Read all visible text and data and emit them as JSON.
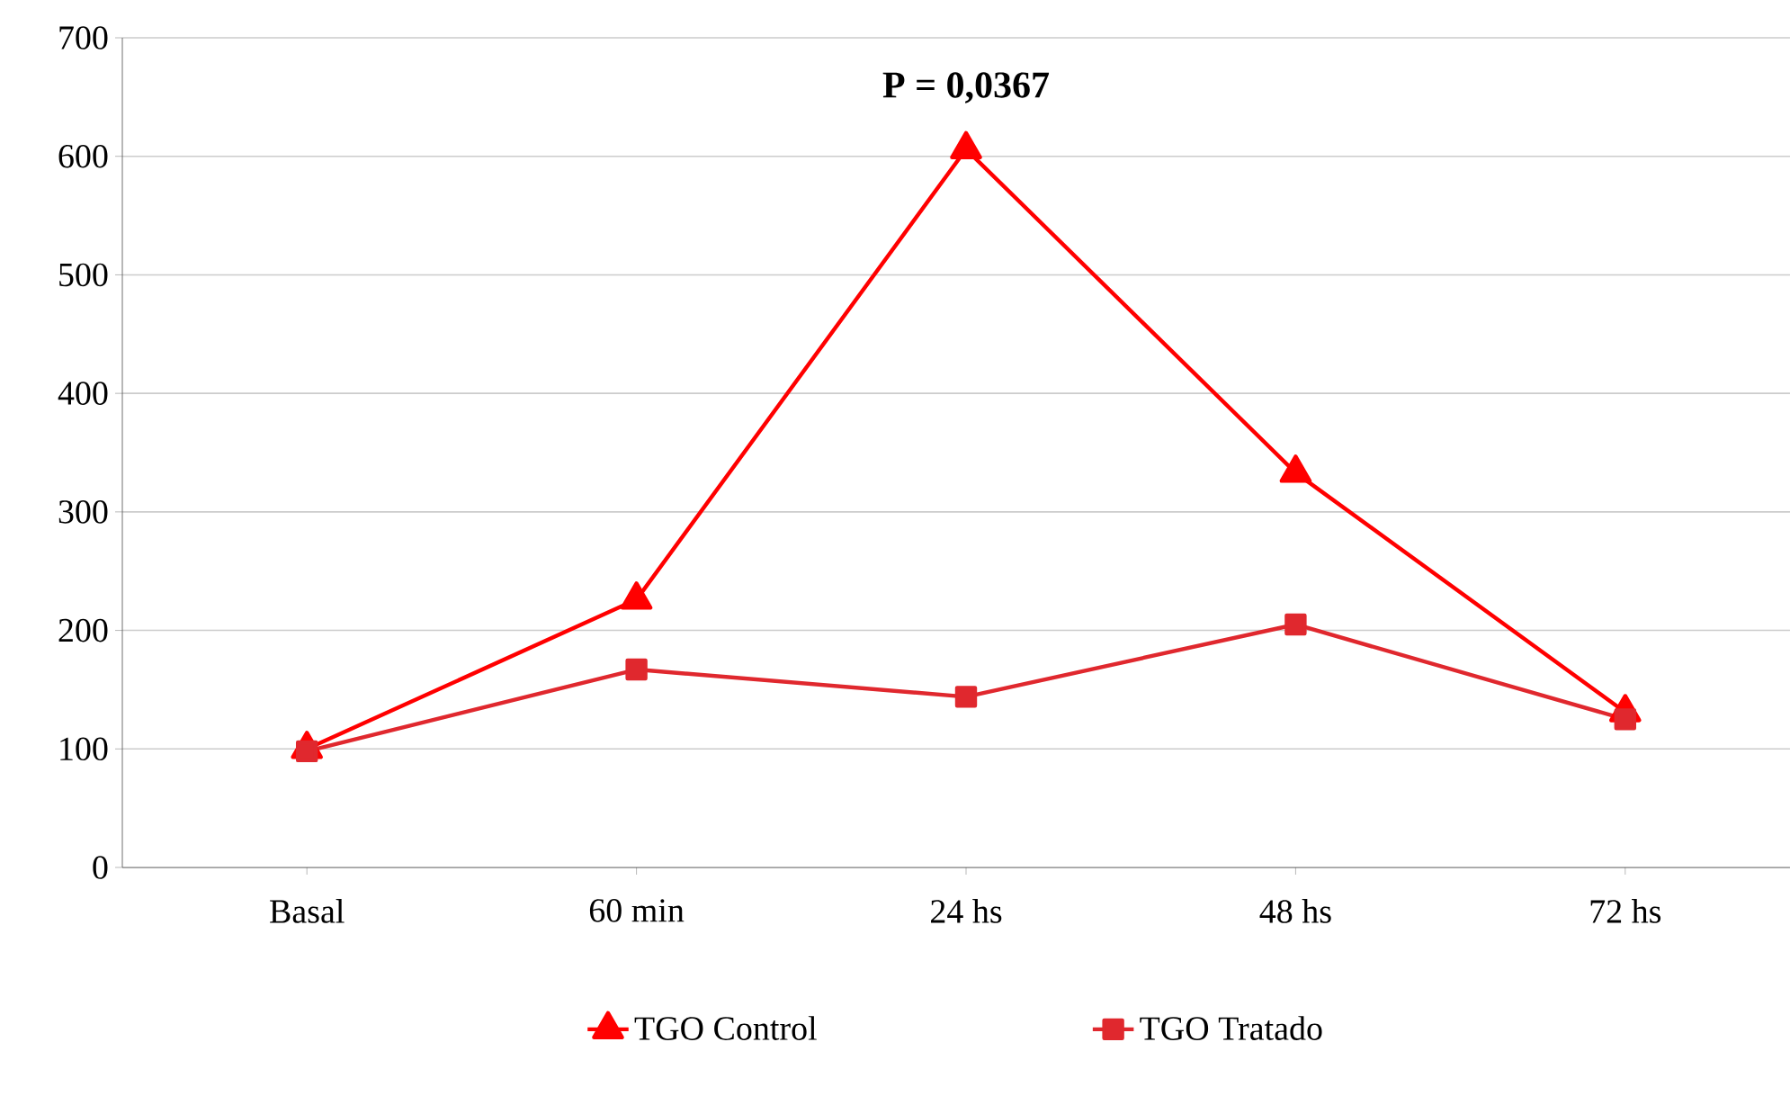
{
  "chart_data": {
    "type": "line",
    "categories": [
      "Basal",
      "60 min",
      "24 hs",
      "48 hs",
      "72 hs"
    ],
    "series": [
      {
        "name": "TGO Control",
        "color": "#ff0000",
        "marker": "triangle",
        "values": [
          100,
          226,
          606,
          333,
          131
        ]
      },
      {
        "name": "TGO Tratado",
        "color": "#e0282e",
        "marker": "square",
        "values": [
          98,
          167,
          144,
          205,
          125
        ]
      }
    ],
    "ylim": [
      0,
      700
    ],
    "yticks": [
      0,
      100,
      200,
      300,
      400,
      500,
      600,
      700
    ],
    "grid": "y",
    "legend": "bottom",
    "line_style": "solid",
    "annotations": [
      {
        "text": "**P = 0,0367**",
        "x": "24 hs",
        "y": 606
      }
    ]
  }
}
